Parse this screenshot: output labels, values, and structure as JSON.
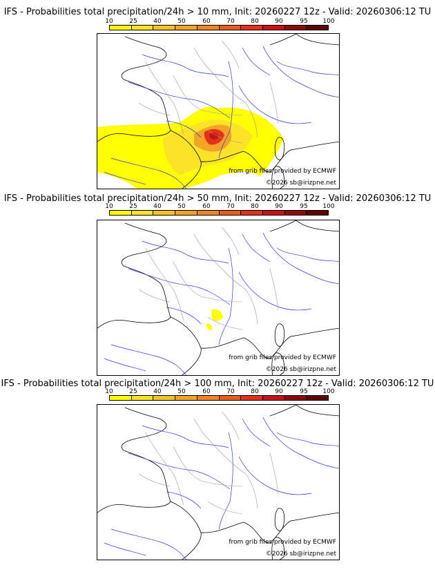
{
  "scale": {
    "labels": [
      "10",
      "25",
      "40",
      "50",
      "60",
      "70",
      "80",
      "90",
      "95",
      "100"
    ],
    "colors": [
      "#ffff00",
      "#fde22a",
      "#f7c228",
      "#f3a326",
      "#ef8523",
      "#e95e1e",
      "#e3321a",
      "#c41414",
      "#8f0a0a",
      "#5e0505"
    ]
  },
  "panels": [
    {
      "title": "IFS - Probabilities total precipitation/24h > 10 mm, Init: 20260227 12z - Valid: 20260306:12 TU",
      "credit_source": "from grib files provided by ECMWF",
      "credit_copyright": "©2026 sb@irizpne.net",
      "precip_levels": "high"
    },
    {
      "title": "IFS - Probabilities total precipitation/24h > 50 mm, Init: 20260227 12z - Valid: 20260306:12 TU",
      "credit_source": "from grib files provided by ECMWF",
      "credit_copyright": "©2026 sb@irizpne.net",
      "precip_levels": "low"
    },
    {
      "title": "IFS - Probabilities total precipitation/24h > 100 mm, Init: 20260227 12z - Valid: 20260306:12 TU",
      "credit_source": "from grib files provided by ECMWF",
      "credit_copyright": "©2026 sb@irizpne.net",
      "precip_levels": "none"
    }
  ],
  "colors": {
    "coast": "#000000",
    "rivers": "#2a3bd8",
    "borders": "#999999"
  }
}
